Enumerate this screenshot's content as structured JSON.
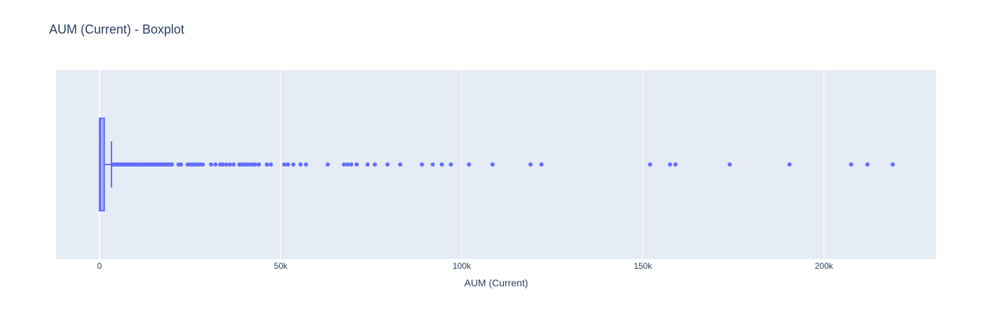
{
  "chart_data": {
    "type": "box",
    "title": "AUM (Current) - Boxplot",
    "xlabel": "AUM (Current)",
    "ylabel": "",
    "xlim": [
      -12000,
      231000
    ],
    "grid": true,
    "orientation": "horizontal",
    "x_ticks": [
      {
        "value": 0,
        "label": "0"
      },
      {
        "value": 50000,
        "label": "50k"
      },
      {
        "value": 100000,
        "label": "100k"
      },
      {
        "value": 150000,
        "label": "150k"
      },
      {
        "value": 200000,
        "label": "200k"
      }
    ],
    "box": {
      "min": 0,
      "q1": 0,
      "median": 200,
      "q3": 1300,
      "upper_fence": 3300
    },
    "outliers": [
      3500,
      4000,
      4500,
      5000,
      5500,
      6000,
      6500,
      7000,
      7500,
      8000,
      8500,
      9000,
      9500,
      10000,
      10500,
      11000,
      11500,
      12000,
      12500,
      13000,
      13500,
      14000,
      14500,
      15000,
      15500,
      16000,
      16500,
      17000,
      17500,
      18000,
      18500,
      19000,
      19500,
      20000,
      21800,
      22500,
      24300,
      25000,
      25600,
      26300,
      27000,
      27700,
      28500,
      30800,
      32000,
      33300,
      34000,
      35000,
      36000,
      37000,
      38600,
      39300,
      40000,
      40700,
      41500,
      42300,
      43000,
      44000,
      46200,
      47300,
      51000,
      52000,
      53500,
      55500,
      57000,
      63000,
      67500,
      68500,
      69500,
      71000,
      74000,
      76000,
      79500,
      83000,
      89000,
      92000,
      94500,
      97000,
      102000,
      108500,
      119000,
      122000,
      152000,
      157500,
      159000,
      174000,
      190500,
      207500,
      212000,
      219000
    ]
  },
  "colors": {
    "plot_bg": "#e5ecf6",
    "grid": "#ffffff",
    "trace": "#636efa",
    "box_fill": "rgba(99,110,250,0.5)"
  }
}
